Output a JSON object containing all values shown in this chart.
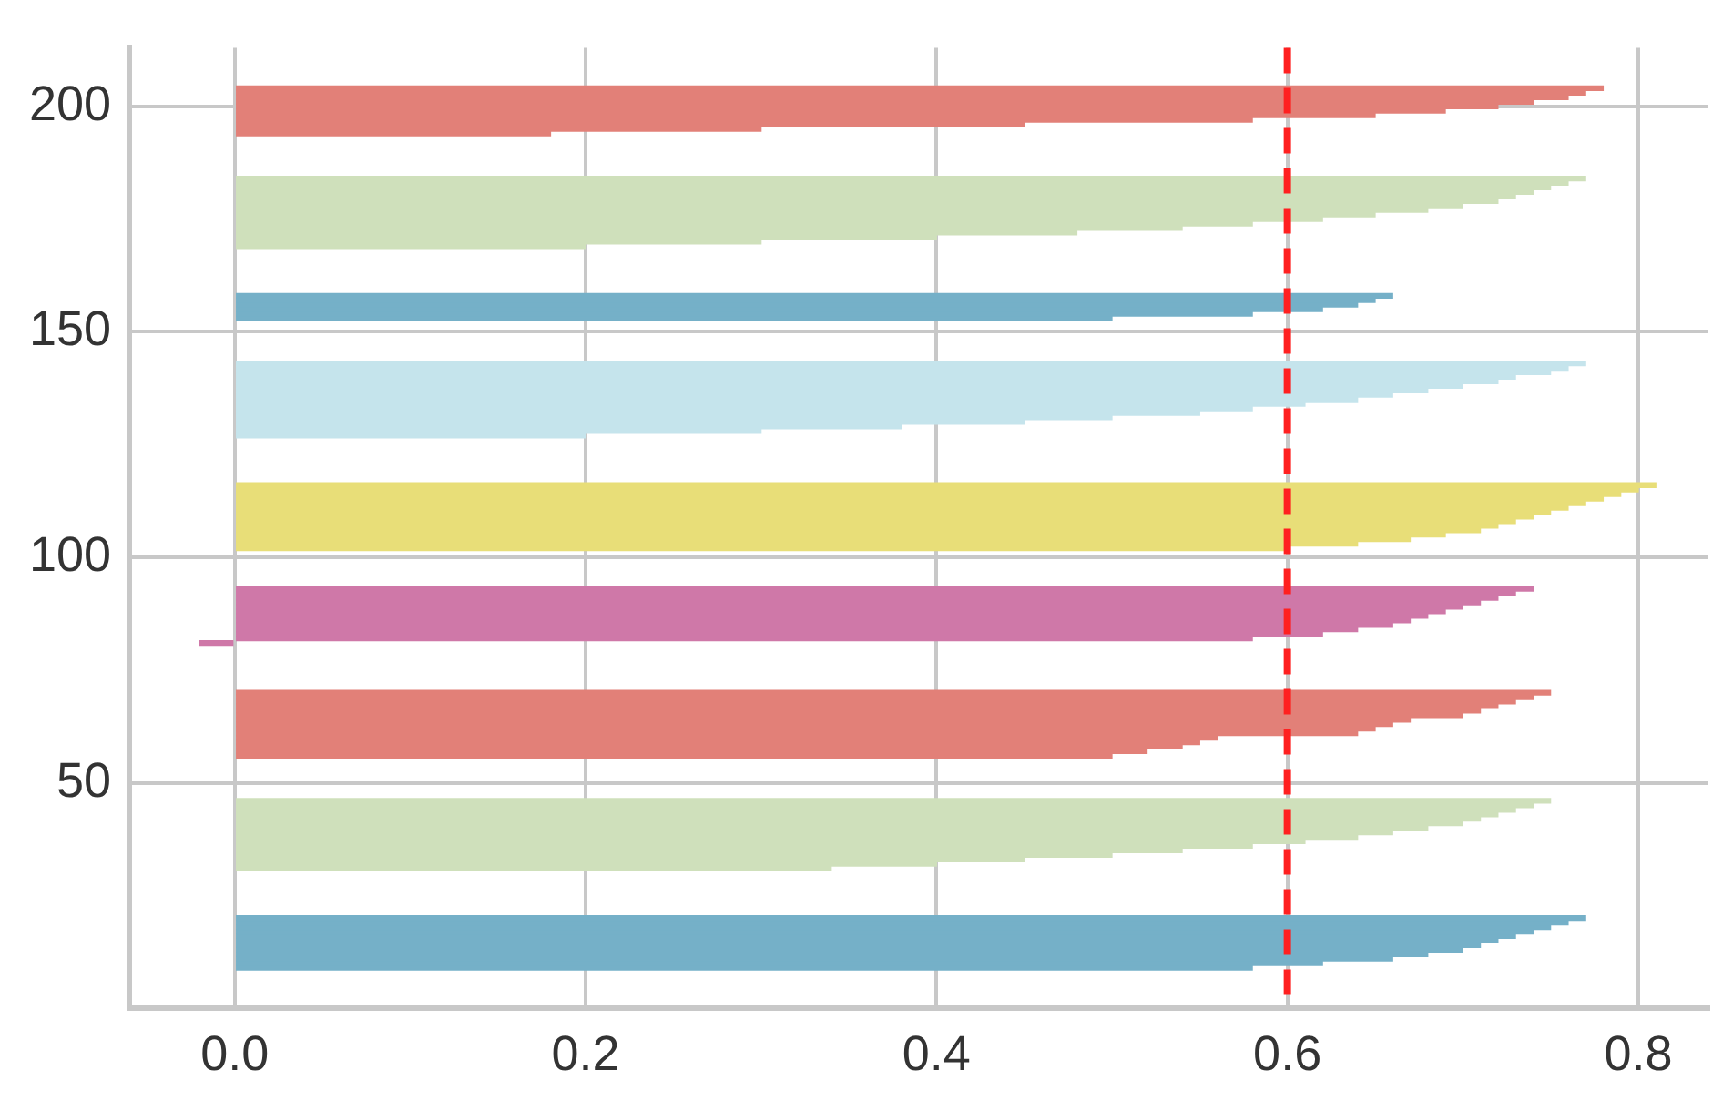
{
  "chart_data": {
    "type": "bar",
    "orientation": "horizontal",
    "xlim": [
      -0.06,
      0.84
    ],
    "xticks": [
      {
        "value": 0,
        "label": "0.0"
      },
      0.2,
      0.4,
      0.6,
      0.8
    ],
    "ylim": [
      0,
      213
    ],
    "yticks": [
      50,
      100,
      150,
      200
    ],
    "grid": true,
    "legend": false,
    "series": [
      {
        "color": "#75b0c8",
        "x": [
          9,
          10,
          11,
          12,
          13,
          14,
          15,
          16,
          17,
          18,
          19,
          20,
          153,
          154,
          155,
          156,
          157,
          158
        ],
        "values": [
          0.58,
          0.62,
          0.66,
          0.68,
          0.7,
          0.71,
          0.72,
          0.73,
          0.74,
          0.75,
          0.76,
          0.77,
          0.5,
          0.58,
          0.62,
          0.64,
          0.65,
          0.66
        ]
      },
      {
        "color": "#cfe0bb",
        "x": [
          31,
          32,
          33,
          34,
          35,
          36,
          37,
          38,
          39,
          40,
          41,
          42,
          43,
          44,
          45,
          46,
          169,
          170,
          171,
          172,
          173,
          174,
          175,
          176,
          177,
          178,
          179,
          180,
          181,
          182,
          183,
          184
        ],
        "values": [
          0.34,
          0.4,
          0.45,
          0.5,
          0.54,
          0.58,
          0.61,
          0.64,
          0.66,
          0.68,
          0.7,
          0.71,
          0.72,
          0.73,
          0.74,
          0.75,
          0.2,
          0.3,
          0.4,
          0.48,
          0.54,
          0.58,
          0.62,
          0.65,
          0.68,
          0.7,
          0.72,
          0.73,
          0.74,
          0.75,
          0.76,
          0.77
        ]
      },
      {
        "color": "#e28078",
        "x": [
          56,
          57,
          58,
          59,
          60,
          61,
          62,
          63,
          64,
          65,
          66,
          67,
          68,
          69,
          70,
          194,
          195,
          196,
          197,
          198,
          199,
          200,
          201,
          202,
          203,
          204
        ],
        "values": [
          0.5,
          0.52,
          0.54,
          0.55,
          0.56,
          0.64,
          0.65,
          0.66,
          0.67,
          0.7,
          0.71,
          0.72,
          0.73,
          0.74,
          0.75,
          0.18,
          0.3,
          0.45,
          0.58,
          0.65,
          0.69,
          0.72,
          0.74,
          0.76,
          0.77,
          0.78
        ]
      },
      {
        "color": "#cf78a8",
        "x": [
          81,
          82,
          83,
          84,
          85,
          86,
          87,
          88,
          89,
          90,
          91,
          92,
          93
        ],
        "values": [
          -0.02,
          0.58,
          0.62,
          0.64,
          0.66,
          0.67,
          0.68,
          0.69,
          0.7,
          0.71,
          0.72,
          0.73,
          0.74
        ]
      },
      {
        "color": "#e8de78",
        "x": [
          102,
          103,
          104,
          105,
          106,
          107,
          108,
          109,
          110,
          111,
          112,
          113,
          114,
          115,
          116
        ],
        "values": [
          0.6,
          0.64,
          0.67,
          0.69,
          0.71,
          0.72,
          0.73,
          0.74,
          0.75,
          0.76,
          0.77,
          0.78,
          0.79,
          0.8,
          0.81
        ]
      },
      {
        "color": "#c5e4ec",
        "x": [
          127,
          128,
          129,
          130,
          131,
          132,
          133,
          134,
          135,
          136,
          137,
          138,
          139,
          140,
          141,
          142,
          143
        ],
        "values": [
          0.2,
          0.3,
          0.38,
          0.45,
          0.5,
          0.55,
          0.58,
          0.61,
          0.64,
          0.66,
          0.68,
          0.7,
          0.72,
          0.73,
          0.75,
          0.76,
          0.77
        ]
      }
    ],
    "ref_lines": [
      {
        "axis": "x",
        "value": 0.6,
        "color": "#ff2020",
        "line_style": "dashed"
      }
    ]
  }
}
